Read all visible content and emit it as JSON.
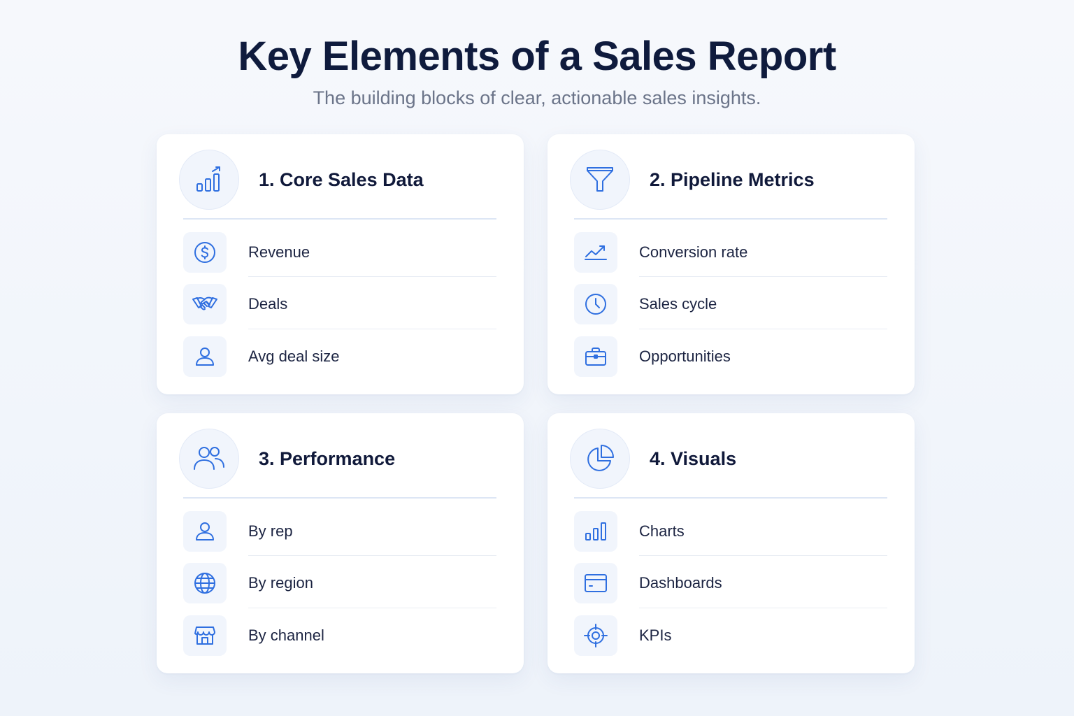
{
  "header": {
    "title": "Key Elements of a Sales Report",
    "subtitle": "The building blocks of clear, actionable sales insights."
  },
  "colors": {
    "accent": "#2f6fe0",
    "title": "#0f1b3d",
    "subtitle": "#6b7489",
    "icon_bg": "#f1f5fc"
  },
  "cards": [
    {
      "title": "1. Core Sales Data",
      "icon": "bar-chart-growth-icon",
      "items": [
        {
          "label": "Revenue",
          "icon": "dollar-icon"
        },
        {
          "label": "Deals",
          "icon": "handshake-icon"
        },
        {
          "label": "Avg deal size",
          "icon": "user-icon"
        }
      ]
    },
    {
      "title": "2. Pipeline Metrics",
      "icon": "funnel-icon",
      "items": [
        {
          "label": "Conversion rate",
          "icon": "trend-up-icon"
        },
        {
          "label": "Sales cycle",
          "icon": "clock-icon"
        },
        {
          "label": "Opportunities",
          "icon": "briefcase-icon"
        }
      ]
    },
    {
      "title": "3. Performance",
      "icon": "users-icon",
      "items": [
        {
          "label": "By rep",
          "icon": "user-icon"
        },
        {
          "label": "By region",
          "icon": "globe-icon"
        },
        {
          "label": "By channel",
          "icon": "store-icon"
        }
      ]
    },
    {
      "title": "4. Visuals",
      "icon": "pie-chart-icon",
      "items": [
        {
          "label": "Charts",
          "icon": "bar-chart-icon"
        },
        {
          "label": "Dashboards",
          "icon": "dashboard-icon"
        },
        {
          "label": "KPIs",
          "icon": "target-icon"
        }
      ]
    }
  ]
}
